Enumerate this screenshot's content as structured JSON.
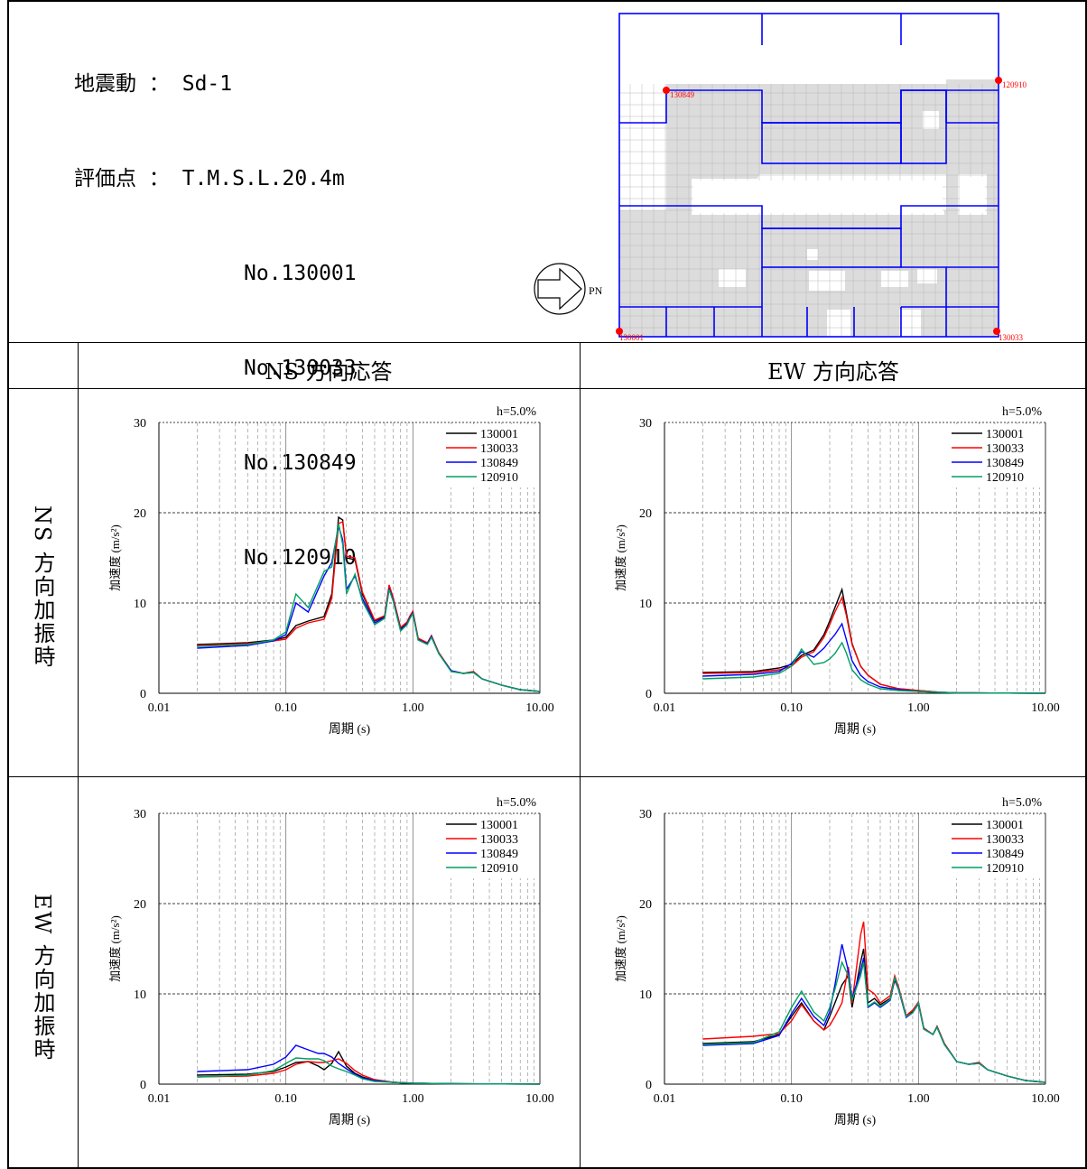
{
  "header": {
    "lines": [
      {
        "label": "地震動",
        "sep": "：",
        "value": "Sd-1"
      },
      {
        "label": "評価点",
        "sep": "：",
        "value": "T.M.S.L.20.4m"
      }
    ],
    "points": [
      "No.130001",
      "No.130033",
      "No.130849",
      "No.120910"
    ]
  },
  "plan": {
    "north_label": "PN",
    "node_labels": [
      "130849",
      "120910",
      "130001",
      "130033"
    ],
    "node_color": "#ff0000",
    "frame_color": "#0000ff"
  },
  "table": {
    "col_headers": [
      "NS 方向応答",
      "EW 方向応答"
    ],
    "row_headers": [
      "NS 方向加振時",
      "EW 方向加振時"
    ]
  },
  "colors": {
    "130001": "#000000",
    "130033": "#ff0000",
    "130849": "#0000ff",
    "120910": "#00a060"
  },
  "chart_data": [
    {
      "type": "line",
      "x_scale": "log",
      "damping": "h=5.0%",
      "xlabel": "周期 (s)",
      "ylabel": "加速度 (m/s²)",
      "xlim": [
        0.01,
        10
      ],
      "ylim": [
        0,
        30
      ],
      "xticks": [
        "0.01",
        "0.10",
        "1.00",
        "10.00"
      ],
      "yticks": [
        "0",
        "10",
        "20",
        "30"
      ],
      "series": [
        {
          "name": "130001",
          "x": [
            0.02,
            0.05,
            0.08,
            0.1,
            0.12,
            0.15,
            0.2,
            0.23,
            0.26,
            0.28,
            0.3,
            0.35,
            0.4,
            0.5,
            0.6,
            0.65,
            0.7,
            0.8,
            0.9,
            0.95,
            1.0,
            1.1,
            1.3,
            1.4,
            1.6,
            2.0,
            2.5,
            3.0,
            3.5,
            5.0,
            7.0,
            10.0
          ],
          "y": [
            5.4,
            5.6,
            5.9,
            6.2,
            7.5,
            8.0,
            8.5,
            11.0,
            19.5,
            19.2,
            15.0,
            14.8,
            11.0,
            8.0,
            8.5,
            11.8,
            10.5,
            7.2,
            7.8,
            8.5,
            9.0,
            6.0,
            5.5,
            6.3,
            4.5,
            2.5,
            2.2,
            2.4,
            1.6,
            0.9,
            0.4,
            0.2
          ]
        },
        {
          "name": "130033",
          "x": [
            0.02,
            0.05,
            0.08,
            0.1,
            0.12,
            0.15,
            0.2,
            0.23,
            0.26,
            0.28,
            0.3,
            0.35,
            0.4,
            0.5,
            0.6,
            0.65,
            0.7,
            0.8,
            0.9,
            0.95,
            1.0,
            1.1,
            1.3,
            1.4,
            1.6,
            2.0,
            2.5,
            3.0,
            3.5,
            5.0,
            7.0,
            10.0
          ],
          "y": [
            5.3,
            5.5,
            5.8,
            6.0,
            7.2,
            7.8,
            8.2,
            10.5,
            18.8,
            19.0,
            15.2,
            15.0,
            11.2,
            8.1,
            8.6,
            12.0,
            10.6,
            7.3,
            7.9,
            8.6,
            9.1,
            6.1,
            5.6,
            6.4,
            4.5,
            2.5,
            2.2,
            2.4,
            1.6,
            0.9,
            0.4,
            0.2
          ]
        },
        {
          "name": "130849",
          "x": [
            0.02,
            0.05,
            0.08,
            0.1,
            0.12,
            0.15,
            0.2,
            0.23,
            0.26,
            0.28,
            0.3,
            0.35,
            0.4,
            0.5,
            0.6,
            0.65,
            0.7,
            0.8,
            0.9,
            0.95,
            1.0,
            1.1,
            1.3,
            1.4,
            1.6,
            2.0,
            2.5,
            3.0,
            3.5,
            5.0,
            7.0,
            10.0
          ],
          "y": [
            5.0,
            5.3,
            5.8,
            6.5,
            10.0,
            9.0,
            13.0,
            14.5,
            18.5,
            17.0,
            11.5,
            13.0,
            10.5,
            7.8,
            8.4,
            11.6,
            10.3,
            7.0,
            7.7,
            8.4,
            8.9,
            5.9,
            5.5,
            6.3,
            4.4,
            2.5,
            2.2,
            2.3,
            1.6,
            0.9,
            0.4,
            0.2
          ]
        },
        {
          "name": "120910",
          "x": [
            0.02,
            0.05,
            0.08,
            0.1,
            0.12,
            0.15,
            0.2,
            0.23,
            0.26,
            0.28,
            0.3,
            0.35,
            0.4,
            0.5,
            0.6,
            0.65,
            0.7,
            0.8,
            0.9,
            0.95,
            1.0,
            1.1,
            1.3,
            1.4,
            1.6,
            2.0,
            2.5,
            3.0,
            3.5,
            5.0,
            7.0,
            10.0
          ],
          "y": [
            5.2,
            5.4,
            5.9,
            6.8,
            11.0,
            9.5,
            13.5,
            14.0,
            18.8,
            16.5,
            11.0,
            13.2,
            10.2,
            7.6,
            8.3,
            11.5,
            10.2,
            6.9,
            7.6,
            8.3,
            8.8,
            5.9,
            5.4,
            6.2,
            4.4,
            2.4,
            2.2,
            2.3,
            1.6,
            0.9,
            0.4,
            0.2
          ]
        }
      ]
    },
    {
      "type": "line",
      "x_scale": "log",
      "damping": "h=5.0%",
      "xlabel": "周期 (s)",
      "ylabel": "加速度 (m/s²)",
      "xlim": [
        0.01,
        10
      ],
      "ylim": [
        0,
        30
      ],
      "xticks": [
        "0.01",
        "0.10",
        "1.00",
        "10.00"
      ],
      "yticks": [
        "0",
        "10",
        "20",
        "30"
      ],
      "series": [
        {
          "name": "130001",
          "x": [
            0.02,
            0.05,
            0.08,
            0.1,
            0.12,
            0.15,
            0.18,
            0.2,
            0.22,
            0.25,
            0.27,
            0.3,
            0.35,
            0.4,
            0.5,
            0.7,
            1.0,
            1.5,
            2.0,
            5.0,
            10.0
          ],
          "y": [
            2.3,
            2.4,
            2.8,
            3.2,
            4.2,
            4.8,
            6.5,
            8.0,
            9.5,
            11.5,
            9.0,
            5.5,
            3.0,
            2.0,
            1.0,
            0.5,
            0.3,
            0.1,
            0.05,
            0.02,
            0.01
          ]
        },
        {
          "name": "130033",
          "x": [
            0.02,
            0.05,
            0.08,
            0.1,
            0.12,
            0.15,
            0.18,
            0.2,
            0.22,
            0.25,
            0.27,
            0.3,
            0.35,
            0.4,
            0.5,
            0.7,
            1.0,
            1.5,
            2.0,
            5.0,
            10.0
          ],
          "y": [
            2.2,
            2.3,
            2.6,
            3.0,
            4.0,
            4.6,
            6.2,
            7.6,
            9.0,
            10.6,
            8.7,
            5.4,
            3.0,
            2.0,
            1.0,
            0.5,
            0.3,
            0.1,
            0.05,
            0.02,
            0.01
          ]
        },
        {
          "name": "130849",
          "x": [
            0.02,
            0.05,
            0.08,
            0.1,
            0.12,
            0.15,
            0.18,
            0.2,
            0.22,
            0.25,
            0.27,
            0.3,
            0.35,
            0.4,
            0.5,
            0.7,
            1.0,
            1.5,
            2.0,
            5.0,
            10.0
          ],
          "y": [
            1.9,
            2.1,
            2.4,
            3.3,
            4.6,
            4.0,
            5.0,
            5.8,
            6.5,
            7.7,
            6.0,
            3.6,
            2.0,
            1.3,
            0.7,
            0.4,
            0.2,
            0.1,
            0.05,
            0.02,
            0.01
          ]
        },
        {
          "name": "120910",
          "x": [
            0.02,
            0.05,
            0.08,
            0.1,
            0.12,
            0.15,
            0.18,
            0.2,
            0.22,
            0.25,
            0.27,
            0.3,
            0.35,
            0.4,
            0.5,
            0.7,
            1.0,
            1.5,
            2.0,
            5.0,
            10.0
          ],
          "y": [
            1.6,
            1.8,
            2.2,
            3.0,
            4.9,
            3.2,
            3.4,
            3.8,
            4.4,
            5.6,
            4.5,
            2.6,
            1.5,
            1.0,
            0.5,
            0.3,
            0.2,
            0.1,
            0.05,
            0.02,
            0.01
          ]
        }
      ]
    },
    {
      "type": "line",
      "x_scale": "log",
      "damping": "h=5.0%",
      "xlabel": "周期 (s)",
      "ylabel": "加速度 (m/s²)",
      "xlim": [
        0.01,
        10
      ],
      "ylim": [
        0,
        30
      ],
      "xticks": [
        "0.01",
        "0.10",
        "1.00",
        "10.00"
      ],
      "yticks": [
        "0",
        "10",
        "20",
        "30"
      ],
      "series": [
        {
          "name": "130001",
          "x": [
            0.02,
            0.05,
            0.08,
            0.1,
            0.12,
            0.15,
            0.18,
            0.2,
            0.23,
            0.26,
            0.3,
            0.35,
            0.4,
            0.5,
            0.7,
            1.0,
            2.0,
            5.0,
            10.0
          ],
          "y": [
            1.0,
            1.1,
            1.4,
            1.9,
            2.4,
            2.5,
            2.0,
            1.6,
            2.3,
            3.6,
            2.0,
            1.2,
            0.8,
            0.4,
            0.2,
            0.1,
            0.05,
            0.02,
            0.01
          ]
        },
        {
          "name": "130033",
          "x": [
            0.02,
            0.05,
            0.08,
            0.1,
            0.12,
            0.15,
            0.18,
            0.2,
            0.23,
            0.26,
            0.3,
            0.35,
            0.4,
            0.5,
            0.7,
            1.0,
            2.0,
            5.0,
            10.0
          ],
          "y": [
            0.8,
            0.9,
            1.2,
            1.6,
            2.2,
            2.5,
            2.4,
            2.4,
            2.6,
            2.8,
            2.3,
            1.5,
            1.0,
            0.5,
            0.2,
            0.1,
            0.05,
            0.02,
            0.01
          ]
        },
        {
          "name": "130849",
          "x": [
            0.02,
            0.05,
            0.08,
            0.1,
            0.12,
            0.15,
            0.18,
            0.2,
            0.23,
            0.26,
            0.3,
            0.35,
            0.4,
            0.5,
            0.7,
            1.0,
            2.0,
            5.0,
            10.0
          ],
          "y": [
            1.4,
            1.6,
            2.2,
            3.0,
            4.3,
            3.8,
            3.4,
            3.4,
            3.0,
            2.3,
            1.7,
            1.1,
            0.7,
            0.4,
            0.2,
            0.1,
            0.05,
            0.02,
            0.01
          ]
        },
        {
          "name": "120910",
          "x": [
            0.02,
            0.05,
            0.08,
            0.1,
            0.12,
            0.15,
            0.18,
            0.2,
            0.23,
            0.26,
            0.3,
            0.35,
            0.4,
            0.5,
            0.7,
            1.0,
            2.0,
            5.0,
            10.0
          ],
          "y": [
            0.8,
            1.0,
            1.5,
            2.3,
            2.9,
            2.8,
            2.8,
            2.6,
            2.0,
            1.7,
            1.4,
            1.0,
            0.6,
            0.3,
            0.2,
            0.1,
            0.05,
            0.02,
            0.01
          ]
        }
      ]
    },
    {
      "type": "line",
      "x_scale": "log",
      "damping": "h=5.0%",
      "xlabel": "周期 (s)",
      "ylabel": "加速度 (m/s²)",
      "xlim": [
        0.01,
        10
      ],
      "ylim": [
        0,
        30
      ],
      "xticks": [
        "0.01",
        "0.10",
        "1.00",
        "10.00"
      ],
      "yticks": [
        "0",
        "10",
        "20",
        "30"
      ],
      "series": [
        {
          "name": "130001",
          "x": [
            0.02,
            0.05,
            0.08,
            0.1,
            0.12,
            0.15,
            0.18,
            0.2,
            0.22,
            0.25,
            0.28,
            0.3,
            0.35,
            0.37,
            0.4,
            0.45,
            0.5,
            0.6,
            0.65,
            0.7,
            0.8,
            0.9,
            1.0,
            1.1,
            1.3,
            1.4,
            1.6,
            2.0,
            2.5,
            3.0,
            3.5,
            5.0,
            7.0,
            10.0
          ],
          "y": [
            4.5,
            4.7,
            5.5,
            7.5,
            9.0,
            7.0,
            6.0,
            7.5,
            9.0,
            11.0,
            12.0,
            8.5,
            13.5,
            15.0,
            9.0,
            9.5,
            8.8,
            9.5,
            11.5,
            10.5,
            7.5,
            8.0,
            9.0,
            6.2,
            5.5,
            6.4,
            4.5,
            2.5,
            2.2,
            2.4,
            1.6,
            0.9,
            0.4,
            0.2
          ]
        },
        {
          "name": "130033",
          "x": [
            0.02,
            0.05,
            0.08,
            0.1,
            0.12,
            0.15,
            0.18,
            0.2,
            0.22,
            0.25,
            0.28,
            0.3,
            0.35,
            0.37,
            0.4,
            0.45,
            0.5,
            0.6,
            0.65,
            0.7,
            0.8,
            0.9,
            1.0,
            1.1,
            1.3,
            1.4,
            1.6,
            2.0,
            2.5,
            3.0,
            3.5,
            5.0,
            7.0,
            10.0
          ],
          "y": [
            5.0,
            5.3,
            5.6,
            7.0,
            8.8,
            7.0,
            6.0,
            6.5,
            7.5,
            9.0,
            13.0,
            9.0,
            16.5,
            18.0,
            10.5,
            10.0,
            9.0,
            9.8,
            12.0,
            10.7,
            7.6,
            8.2,
            9.1,
            6.2,
            5.5,
            6.4,
            4.5,
            2.5,
            2.2,
            2.4,
            1.6,
            0.9,
            0.4,
            0.2
          ]
        },
        {
          "name": "130849",
          "x": [
            0.02,
            0.05,
            0.08,
            0.1,
            0.12,
            0.15,
            0.18,
            0.2,
            0.22,
            0.25,
            0.28,
            0.3,
            0.35,
            0.37,
            0.4,
            0.45,
            0.5,
            0.6,
            0.65,
            0.7,
            0.8,
            0.9,
            1.0,
            1.1,
            1.3,
            1.4,
            1.6,
            2.0,
            2.5,
            3.0,
            3.5,
            5.0,
            7.0,
            10.0
          ],
          "y": [
            4.3,
            4.5,
            5.4,
            7.8,
            9.5,
            7.5,
            6.5,
            8.0,
            11.0,
            15.5,
            12.5,
            9.5,
            12.5,
            14.0,
            8.5,
            9.0,
            8.5,
            9.3,
            11.7,
            10.4,
            7.4,
            7.9,
            8.9,
            6.1,
            5.5,
            6.3,
            4.4,
            2.5,
            2.2,
            2.3,
            1.6,
            0.9,
            0.4,
            0.2
          ]
        },
        {
          "name": "120910",
          "x": [
            0.02,
            0.05,
            0.08,
            0.1,
            0.12,
            0.15,
            0.18,
            0.2,
            0.22,
            0.25,
            0.28,
            0.3,
            0.35,
            0.37,
            0.4,
            0.45,
            0.5,
            0.6,
            0.65,
            0.7,
            0.8,
            0.9,
            1.0,
            1.1,
            1.3,
            1.4,
            1.6,
            2.0,
            2.5,
            3.0,
            3.5,
            5.0,
            7.0,
            10.0
          ],
          "y": [
            4.4,
            4.6,
            5.8,
            8.5,
            10.3,
            8.0,
            7.0,
            8.5,
            10.5,
            13.5,
            12.0,
            9.3,
            12.0,
            13.5,
            8.6,
            9.1,
            8.6,
            9.4,
            11.8,
            10.5,
            7.5,
            7.9,
            9.0,
            6.1,
            5.5,
            6.3,
            4.4,
            2.5,
            2.2,
            2.3,
            1.6,
            0.9,
            0.4,
            0.2
          ]
        }
      ]
    }
  ]
}
